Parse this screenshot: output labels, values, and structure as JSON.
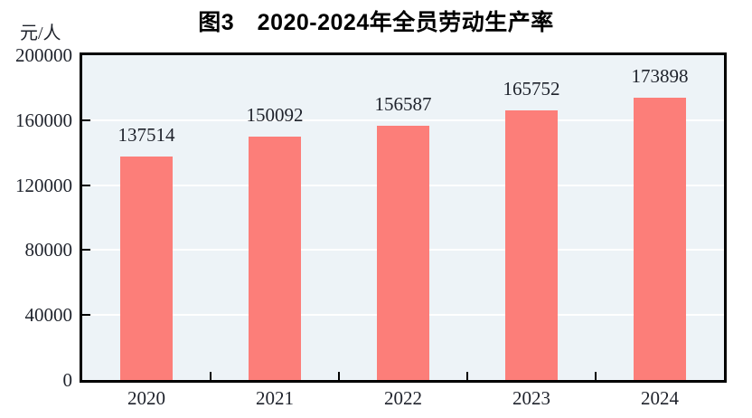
{
  "title": "图3　2020-2024年全员劳动生产率",
  "unit_label": "元/人",
  "chart_data": {
    "type": "bar",
    "title": "图3　2020-2024年全员劳动生产率",
    "categories": [
      "2020",
      "2021",
      "2022",
      "2023",
      "2024"
    ],
    "values": [
      137514,
      150092,
      156587,
      165752,
      173898
    ],
    "value_labels": [
      "137514",
      "150092",
      "156587",
      "165752",
      "173898"
    ],
    "xlabel": "",
    "ylabel": "元/人",
    "ylim": [
      0,
      200000
    ],
    "yticks": [
      0,
      40000,
      80000,
      120000,
      160000,
      200000
    ],
    "ytick_labels": [
      "0",
      "40000",
      "80000",
      "120000",
      "160000",
      "200000"
    ],
    "grid": true,
    "legend_position": "none",
    "bar_color": "#FC7E79",
    "plot_bg_color": "#EDF3F7",
    "gridline_color": "#FFFFFF",
    "frame_color": "#000000",
    "text_color": "#1e222b"
  }
}
